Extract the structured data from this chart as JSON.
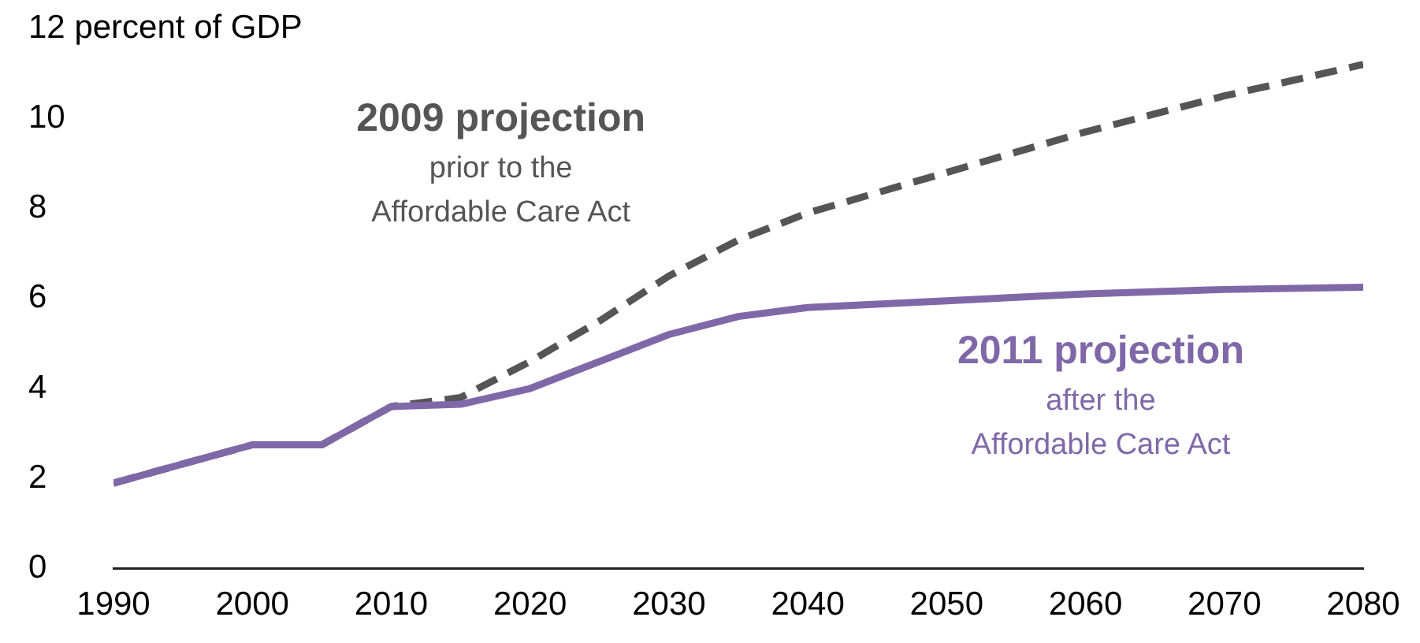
{
  "chart_data": {
    "type": "line",
    "x": [
      1990,
      2000,
      2005,
      2010,
      2015,
      2020,
      2025,
      2030,
      2035,
      2040,
      2050,
      2060,
      2070,
      2080
    ],
    "series": [
      {
        "name": "2009 projection",
        "color": "#555555",
        "line_style": "dashed",
        "values": [
          1.9,
          2.75,
          2.75,
          3.6,
          3.8,
          4.6,
          5.5,
          6.5,
          7.3,
          7.9,
          8.8,
          9.7,
          10.5,
          11.2
        ]
      },
      {
        "name": "2011 projection",
        "color": "#8068a8",
        "line_style": "solid",
        "values": [
          1.9,
          2.75,
          2.75,
          3.6,
          3.65,
          4.0,
          4.6,
          5.2,
          5.6,
          5.8,
          5.95,
          6.1,
          6.2,
          6.25
        ]
      }
    ],
    "annotations": [
      "prior to the Affordable Care Act",
      "after the Affordable Care Act"
    ],
    "xlim": [
      1990,
      2080
    ],
    "xticks": [
      1990,
      2000,
      2010,
      2020,
      2030,
      2040,
      2050,
      2060,
      2070,
      2080
    ],
    "ylim": [
      0,
      12
    ],
    "yticks": [
      0,
      2,
      4,
      6,
      8,
      10,
      {
        "value": 12,
        "label": "12 percent of GDP"
      }
    ],
    "grid": false,
    "legend": false,
    "marker": "none"
  }
}
